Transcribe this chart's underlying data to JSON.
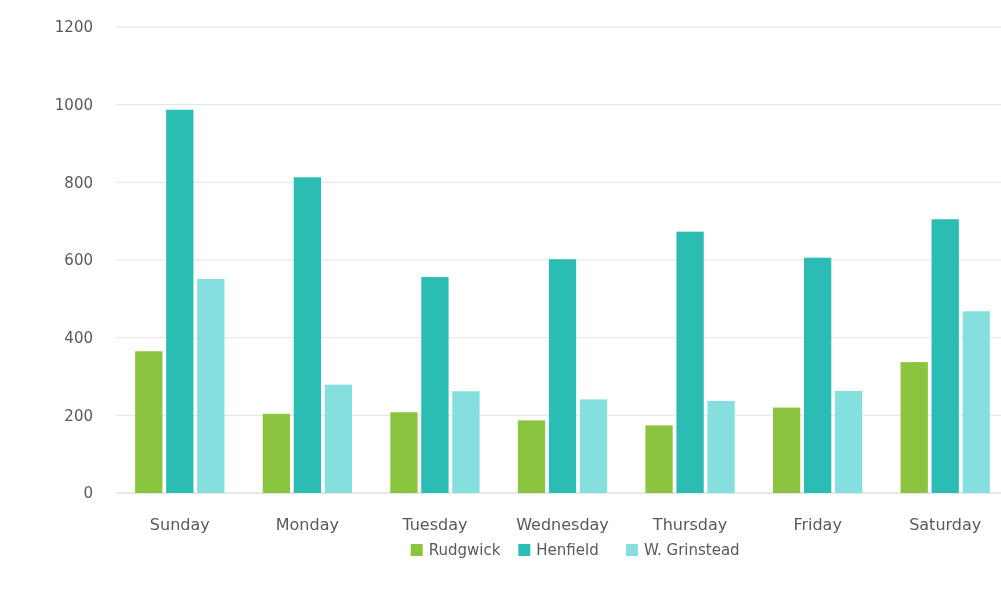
{
  "chart_data": {
    "type": "bar",
    "categories": [
      "Sunday",
      "Monday",
      "Tuesday",
      "Wednesday",
      "Thursday",
      "Friday",
      "Saturday"
    ],
    "series": [
      {
        "name": "Rudgwick",
        "color": "#8bc43f",
        "values": [
          365,
          204,
          208,
          187,
          174,
          220,
          337
        ]
      },
      {
        "name": "Henfield",
        "color": "#2bbcb3",
        "values": [
          987,
          813,
          556,
          602,
          673,
          606,
          705
        ]
      },
      {
        "name": "W. Grinstead",
        "color": "#84dfde",
        "values": [
          551,
          279,
          262,
          241,
          237,
          263,
          468
        ]
      }
    ],
    "ylim": [
      0,
      1200
    ],
    "yticks": [
      0,
      200,
      400,
      600,
      800,
      1000,
      1200
    ],
    "grid": "y",
    "legend": "bottom"
  }
}
